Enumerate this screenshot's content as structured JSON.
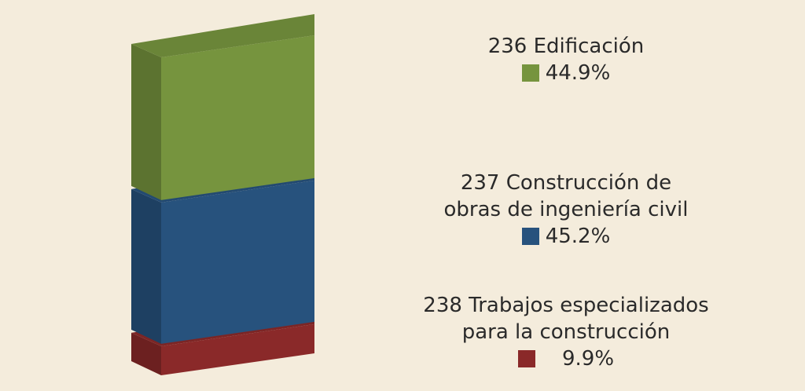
{
  "chart_data": {
    "type": "bar",
    "stacked": true,
    "categories": [
      ""
    ],
    "series": [
      {
        "name": "236 Edificación",
        "value": 44.9,
        "label": "44.9%",
        "color": "#76943e"
      },
      {
        "name": "237 Construcción de\nobras de ingeniería civil",
        "value": 45.2,
        "label": "45.2%",
        "color": "#27527d"
      },
      {
        "name": "238 Trabajos especializados\npara la construcción",
        "value": 9.9,
        "label": "9.9%",
        "color": "#8a2929"
      }
    ],
    "legend_position": "right",
    "grid": false
  }
}
